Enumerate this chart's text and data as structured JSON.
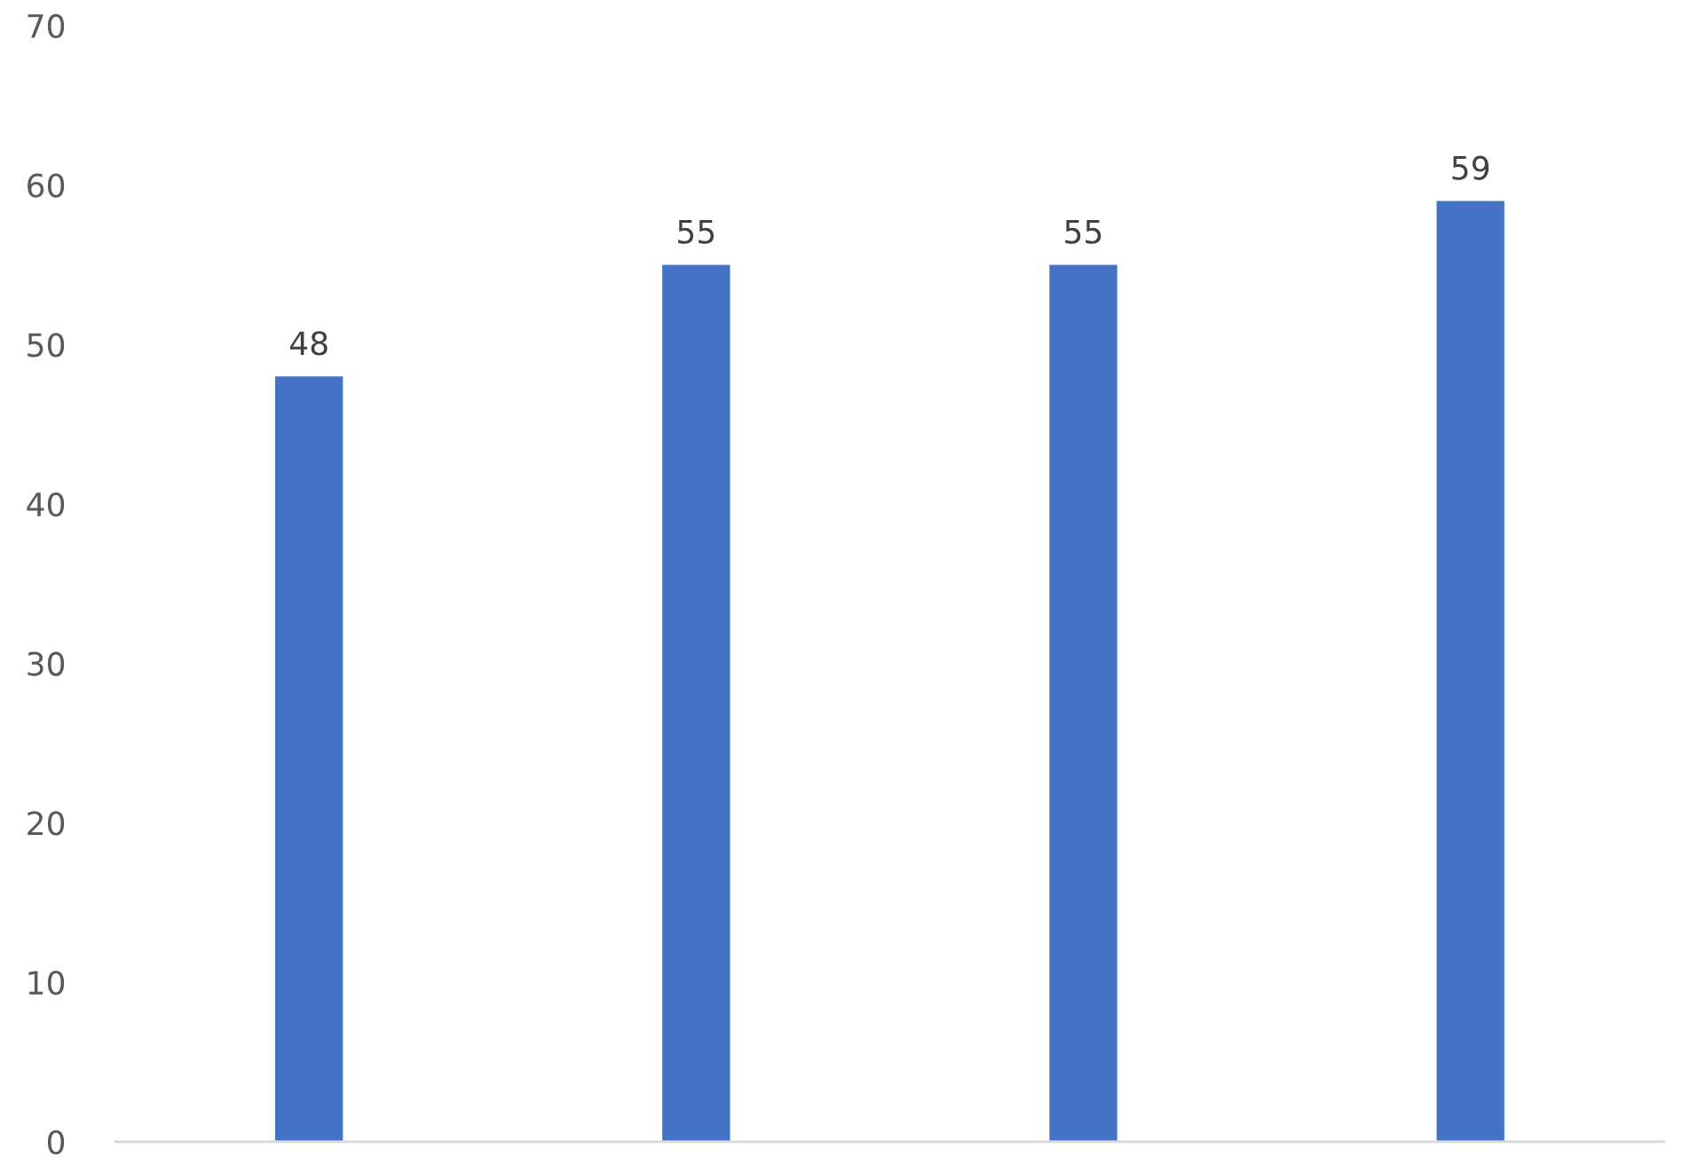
{
  "chart_data": {
    "type": "bar",
    "categories": [
      null,
      null,
      null,
      null
    ],
    "values": [
      48,
      55,
      55,
      59
    ],
    "color": "#4472c4",
    "ylim": [
      0,
      70
    ],
    "yticks": [
      0,
      10,
      20,
      30,
      40,
      50,
      60,
      70
    ],
    "grid": false,
    "data_labels": true
  }
}
